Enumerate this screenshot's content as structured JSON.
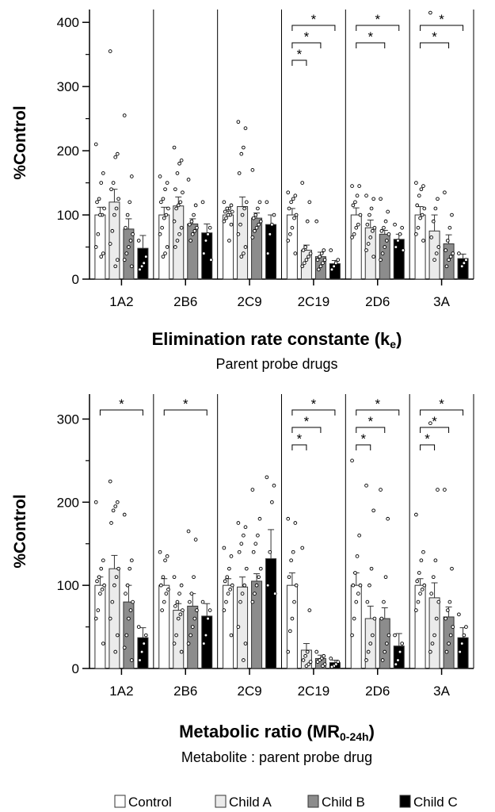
{
  "legend": [
    {
      "label": "Control",
      "color": "#ffffff"
    },
    {
      "label": "Child A",
      "color": "#ebebeb"
    },
    {
      "label": "Child B",
      "color": "#8c8c8c"
    },
    {
      "label": "Child C",
      "color": "#000000"
    }
  ],
  "chart_data": [
    {
      "type": "bar",
      "title": "Elimination rate constante (k",
      "title_sub": "e",
      "title_end": ")",
      "subtitle": "Parent probe drugs",
      "ylabel": "%Control",
      "ylim": [
        0,
        420
      ],
      "yticks": [
        0,
        100,
        200,
        300,
        400
      ],
      "categories": [
        "1A2",
        "2B6",
        "2C9",
        "2C19",
        "2D6",
        "3A"
      ],
      "series": [
        {
          "name": "Control",
          "values": [
            100,
            100,
            100,
            100,
            100,
            100
          ],
          "errors": [
            12,
            12,
            6,
            10,
            11,
            13
          ]
        },
        {
          "name": "Child A",
          "values": [
            120,
            114,
            113,
            45,
            80,
            75
          ],
          "errors": [
            20,
            14,
            15,
            8,
            12,
            25
          ]
        },
        {
          "name": "Child B",
          "values": [
            78,
            86,
            95,
            35,
            70,
            55
          ],
          "errors": [
            16,
            8,
            8,
            7,
            6,
            14
          ]
        },
        {
          "name": "Child C",
          "values": [
            48,
            72,
            85,
            24,
            62,
            32
          ],
          "errors": [
            20,
            14,
            15,
            5,
            8,
            7
          ]
        }
      ],
      "points": [
        [
          [
            210,
            165,
            150,
            125,
            120,
            110,
            100,
            100,
            70,
            50,
            40,
            35
          ],
          [
            355,
            195,
            190,
            150,
            140,
            125,
            110,
            100,
            75,
            55,
            30,
            20
          ],
          [
            255,
            160,
            120,
            100,
            80,
            70,
            60,
            50,
            40,
            30,
            20
          ],
          [
            60,
            35,
            25,
            20,
            15
          ]
        ],
        [
          [
            160,
            150,
            140,
            125,
            120,
            110,
            100,
            95,
            80,
            70,
            50,
            40,
            35
          ],
          [
            205,
            185,
            180,
            165,
            140,
            135,
            120,
            115,
            110,
            90,
            80,
            70,
            60,
            50
          ],
          [
            155,
            115,
            100,
            90,
            85,
            80,
            75,
            70,
            60
          ],
          [
            120,
            80,
            70,
            60,
            40,
            30
          ]
        ],
        [
          [
            120,
            115,
            110,
            110,
            105,
            105,
            100,
            100,
            95,
            90,
            85,
            60
          ],
          [
            245,
            235,
            205,
            195,
            165,
            120,
            110,
            100,
            85,
            70,
            50,
            40,
            35
          ],
          [
            170,
            120,
            110,
            100,
            95,
            90,
            85,
            80,
            75,
            65
          ],
          [
            120,
            100,
            85,
            70,
            40
          ]
        ],
        [
          [
            135,
            130,
            125,
            120,
            110,
            100,
            95,
            80,
            70,
            60,
            40
          ],
          [
            150,
            120,
            90,
            50,
            45,
            40,
            35,
            30,
            25,
            20
          ],
          [
            90,
            45,
            40,
            35,
            30,
            30,
            25,
            20,
            15
          ],
          [
            45,
            30,
            25,
            20,
            15
          ]
        ],
        [
          [
            145,
            145,
            130,
            120,
            115,
            100,
            85,
            80,
            70,
            65
          ],
          [
            130,
            125,
            110,
            100,
            85,
            80,
            75,
            65,
            55,
            45,
            35
          ],
          [
            125,
            105,
            90,
            80,
            75,
            70,
            60,
            50,
            40,
            30
          ],
          [
            85,
            80,
            70,
            60,
            50,
            45
          ]
        ],
        [
          [
            150,
            145,
            140,
            130,
            115,
            110,
            100,
            95,
            80,
            70,
            60
          ],
          [
            415,
            125,
            110,
            90,
            65,
            50,
            40,
            30
          ],
          [
            135,
            100,
            80,
            60,
            45,
            40,
            35,
            30,
            20
          ],
          [
            40,
            30,
            25,
            20
          ]
        ]
      ],
      "significance": [
        {
          "group": 3,
          "pairs": [
            [
              0,
              1,
              1
            ],
            [
              0,
              2,
              2
            ],
            [
              0,
              3,
              3
            ]
          ]
        },
        {
          "group": 4,
          "pairs": [
            [
              0,
              2,
              1
            ],
            [
              0,
              3,
              2
            ]
          ]
        },
        {
          "group": 5,
          "pairs": [
            [
              0,
              2,
              1
            ],
            [
              0,
              3,
              2
            ]
          ]
        }
      ],
      "star": "*"
    },
    {
      "type": "bar",
      "title": "Metabolic ratio (MR",
      "title_sub": "0-24h",
      "title_end": ")",
      "subtitle": "Metabolite : parent probe drug",
      "ylabel": "%Control",
      "ylim": [
        0,
        330
      ],
      "yticks": [
        0,
        100,
        200,
        300
      ],
      "categories": [
        "1A2",
        "2B6",
        "2C9",
        "2C19",
        "2D6",
        "3A"
      ],
      "series": [
        {
          "name": "Control",
          "values": [
            100,
            100,
            100,
            100,
            100,
            100
          ],
          "errors": [
            10,
            8,
            8,
            15,
            15,
            8
          ]
        },
        {
          "name": "Child A",
          "values": [
            120,
            70,
            98,
            22,
            60,
            85
          ],
          "errors": [
            16,
            8,
            12,
            8,
            15,
            18
          ]
        },
        {
          "name": "Child B",
          "values": [
            80,
            75,
            105,
            12,
            60,
            62
          ],
          "errors": [
            20,
            15,
            9,
            4,
            13,
            12
          ]
        },
        {
          "name": "Child C",
          "values": [
            37,
            63,
            132,
            7,
            27,
            37
          ],
          "errors": [
            12,
            15,
            35,
            3,
            15,
            12
          ]
        }
      ],
      "points": [
        [
          [
            200,
            130,
            120,
            110,
            105,
            100,
            95,
            90,
            70,
            60,
            30
          ],
          [
            225,
            200,
            195,
            190,
            175,
            120,
            110,
            100,
            80,
            60,
            40,
            20
          ],
          [
            185,
            130,
            120,
            100,
            90,
            80,
            70,
            60,
            40,
            25,
            10
          ],
          [
            50,
            40,
            30,
            20,
            10
          ]
        ],
        [
          [
            140,
            135,
            130,
            110,
            100,
            95,
            90,
            80,
            70
          ],
          [
            110,
            100,
            90,
            80,
            75,
            70,
            65,
            60,
            40,
            30,
            20
          ],
          [
            165,
            155,
            110,
            90,
            80,
            70,
            60,
            50,
            40,
            30
          ],
          [
            80,
            70,
            60,
            40,
            30
          ]
        ],
        [
          [
            145,
            135,
            120,
            110,
            105,
            100,
            95,
            90,
            80,
            70,
            40
          ],
          [
            175,
            170,
            160,
            150,
            140,
            120,
            100,
            90,
            80,
            50,
            30,
            10
          ],
          [
            215,
            180,
            160,
            150,
            140,
            120,
            110,
            100,
            90,
            80
          ],
          [
            230,
            220,
            200,
            140,
            100,
            90
          ]
        ],
        [
          [
            180,
            175,
            140,
            130,
            110,
            100,
            80,
            60,
            45,
            20
          ],
          [
            145,
            70,
            20,
            15,
            10,
            8,
            5,
            3
          ],
          [
            20,
            15,
            12,
            10,
            8,
            5,
            3
          ],
          [
            12,
            8,
            5,
            3,
            2
          ]
        ],
        [
          [
            250,
            160,
            135,
            115,
            100,
            100,
            90,
            80,
            60,
            40
          ],
          [
            220,
            190,
            120,
            100,
            80,
            60,
            40,
            30,
            20,
            10
          ],
          [
            215,
            180,
            110,
            80,
            60,
            40,
            30,
            20,
            10
          ],
          [
            40,
            30,
            20,
            10,
            5
          ]
        ],
        [
          [
            185,
            140,
            130,
            115,
            105,
            100,
            95,
            90,
            80,
            70
          ],
          [
            295,
            215,
            130,
            110,
            90,
            80,
            60,
            40,
            30,
            20
          ],
          [
            215,
            120,
            80,
            70,
            60,
            50,
            40,
            30,
            20
          ],
          [
            65,
            50,
            40,
            30,
            20
          ]
        ]
      ],
      "significance": [
        {
          "group": 0,
          "pairs": [
            [
              0,
              3,
              1
            ]
          ]
        },
        {
          "group": 1,
          "pairs": [
            [
              0,
              3,
              1
            ]
          ]
        },
        {
          "group": 3,
          "pairs": [
            [
              0,
              1,
              1
            ],
            [
              0,
              2,
              2
            ],
            [
              0,
              3,
              3
            ]
          ]
        },
        {
          "group": 4,
          "pairs": [
            [
              0,
              1,
              1
            ],
            [
              0,
              2,
              2
            ],
            [
              0,
              3,
              3
            ]
          ]
        },
        {
          "group": 5,
          "pairs": [
            [
              0,
              1,
              1
            ],
            [
              0,
              2,
              2
            ],
            [
              0,
              3,
              3
            ]
          ]
        }
      ],
      "star": "*"
    }
  ]
}
